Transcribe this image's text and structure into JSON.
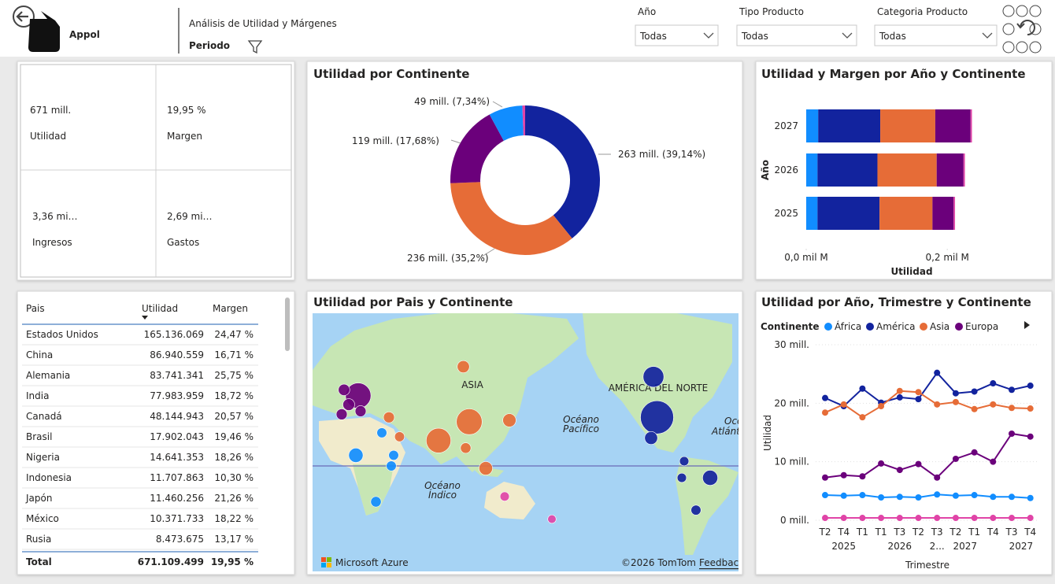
{
  "header": {
    "logo": "Appol",
    "title": "Análisis de Utilidad y Márgenes",
    "period_label": "Periodo"
  },
  "filters": [
    {
      "label": "Año",
      "value": "Todas"
    },
    {
      "label": "Tipo Producto",
      "value": "Todas"
    },
    {
      "label": "Categoria Producto",
      "value": "Todas"
    }
  ],
  "kpis": [
    {
      "value": "671 mill.",
      "label": "Utilidad"
    },
    {
      "value": "19,95 %",
      "label": "Margen"
    },
    {
      "value": "3,36 mi…",
      "label": "Ingresos"
    },
    {
      "value": "2,69 mi…",
      "label": "Gastos"
    }
  ],
  "table": {
    "columns": [
      "Pais",
      "Utilidad",
      "Margen"
    ],
    "rows": [
      [
        "Estados Unidos",
        "165.136.069",
        "24,47 %"
      ],
      [
        "China",
        "86.940.559",
        "16,71 %"
      ],
      [
        "Alemania",
        "83.741.341",
        "25,75 %"
      ],
      [
        "India",
        "77.983.959",
        "18,72 %"
      ],
      [
        "Canadá",
        "48.144.943",
        "20,57 %"
      ],
      [
        "Brasil",
        "17.902.043",
        "19,46 %"
      ],
      [
        "Nigeria",
        "14.641.353",
        "18,26 %"
      ],
      [
        "Indonesia",
        "11.707.863",
        "10,30 %"
      ],
      [
        "Japón",
        "11.460.256",
        "21,26 %"
      ],
      [
        "México",
        "10.371.733",
        "18,22 %"
      ],
      [
        "Rusia",
        "8.473.675",
        "13,17 %"
      ]
    ],
    "total": [
      "Total",
      "671.109.499",
      "19,95 %"
    ]
  },
  "map": {
    "title": "Utilidad por Pais y Continente",
    "labels": [
      "ASIA",
      "AMÉRICA DEL NORTE",
      "Océano",
      "Pacífico",
      "Océano",
      "Atlántico",
      "Océano",
      "Índico"
    ],
    "brand": "Microsoft Azure",
    "copyright": "©2026 TomTom",
    "feedback": "Feedback",
    "points": [
      {
        "lat": 38,
        "lon": -97,
        "value": 165,
        "color": "#12239e"
      },
      {
        "lat": 35,
        "lon": 104,
        "value": 87,
        "color": "#e66c37"
      },
      {
        "lat": 51,
        "lon": 10,
        "value": 84,
        "color": "#6b007b"
      },
      {
        "lat": 21,
        "lon": 78,
        "value": 78,
        "color": "#e66c37"
      },
      {
        "lat": 60,
        "lon": -100,
        "value": 48,
        "color": "#12239e"
      },
      {
        "lat": -10,
        "lon": -52,
        "value": 18,
        "color": "#12239e"
      },
      {
        "lat": 9,
        "lon": 8,
        "value": 15,
        "color": "#118dff"
      },
      {
        "lat": -2,
        "lon": 118,
        "value": 12,
        "color": "#e66c37"
      },
      {
        "lat": 36,
        "lon": 138,
        "value": 11,
        "color": "#e66c37"
      },
      {
        "lat": 23,
        "lon": -102,
        "value": 10,
        "color": "#12239e"
      },
      {
        "lat": 64,
        "lon": 99,
        "value": 8,
        "color": "#e66c37"
      },
      {
        "lat": 46,
        "lon": 2,
        "value": 7,
        "color": "#6b007b"
      },
      {
        "lat": 54,
        "lon": -2,
        "value": 6,
        "color": "#6b007b"
      },
      {
        "lat": 42,
        "lon": 12,
        "value": 5,
        "color": "#6b007b"
      },
      {
        "lat": 40,
        "lon": -4,
        "value": 5,
        "color": "#6b007b"
      },
      {
        "lat": 38,
        "lon": 36,
        "value": 5,
        "color": "#e66c37"
      },
      {
        "lat": 24,
        "lon": 45,
        "value": 3,
        "color": "#e66c37"
      },
      {
        "lat": 15,
        "lon": 101,
        "value": 4,
        "color": "#e66c37"
      },
      {
        "lat": 27,
        "lon": 30,
        "value": 3,
        "color": "#118dff"
      },
      {
        "lat": -29,
        "lon": 25,
        "value": 4,
        "color": "#118dff"
      },
      {
        "lat": 0,
        "lon": 38,
        "value": 3,
        "color": "#118dff"
      },
      {
        "lat": 9,
        "lon": 40,
        "value": 3,
        "color": "#118dff"
      },
      {
        "lat": -35,
        "lon": -64,
        "value": 3,
        "color": "#12239e"
      },
      {
        "lat": 4,
        "lon": -74,
        "value": 2,
        "color": "#12239e"
      },
      {
        "lat": -10,
        "lon": -76,
        "value": 2,
        "color": "#12239e"
      },
      {
        "lat": -25,
        "lon": 134,
        "value": 2,
        "color": "#e044a7"
      },
      {
        "lat": -41,
        "lon": 174,
        "value": 1,
        "color": "#e044a7"
      }
    ]
  },
  "chart_data": [
    {
      "type": "donut",
      "title": "Utilidad por Continente",
      "values": [
        263,
        236,
        119,
        49,
        4
      ],
      "value_labels": [
        "263 mill. (39,14%)",
        "236 mill. (35,2%)",
        "119 mill. (17,68%)",
        "49 mill. (7,34%)",
        null
      ],
      "colors": [
        "#12239e",
        "#e66c37",
        "#6b007b",
        "#118dff",
        "#e044a7"
      ]
    },
    {
      "type": "bar",
      "orientation": "horizontal",
      "stacked": true,
      "title": "Utilidad y Margen por Año y Continente",
      "categories": [
        "2027",
        "2026",
        "2025"
      ],
      "xlabel": "Utilidad",
      "ylabel": "Año",
      "xlim": [
        0,
        0.24
      ],
      "xticks": [
        {
          "value": 0,
          "label": "0,0 mil M"
        },
        {
          "value": 0.2,
          "label": "0,2 mil M"
        }
      ],
      "series": [
        {
          "color": "#118dff",
          "values": [
            0.017,
            0.016,
            0.016
          ]
        },
        {
          "color": "#12239e",
          "values": [
            0.088,
            0.085,
            0.088
          ]
        },
        {
          "color": "#e66c37",
          "values": [
            0.078,
            0.084,
            0.075
          ]
        },
        {
          "color": "#6b007b",
          "values": [
            0.05,
            0.038,
            0.03
          ]
        },
        {
          "color": "#e044a7",
          "values": [
            0.002,
            0.002,
            0.002
          ]
        }
      ]
    },
    {
      "type": "line",
      "title": "Utilidad por Año, Trimestre y Continente",
      "legend_title": "Continente",
      "categories": [
        "T2",
        "T4",
        "T1",
        "T1",
        "T3",
        "T2",
        "T3",
        "T2",
        "T1",
        "T4",
        "T3",
        "T4"
      ],
      "x_groups": [
        "2025",
        "2026",
        "2...",
        "2027",
        "2027"
      ],
      "xlabel": "Trimestre",
      "ylabel": "Utilidad",
      "ylim": [
        0,
        30
      ],
      "yticks": [
        {
          "value": 0,
          "label": "0 mill."
        },
        {
          "value": 10,
          "label": "10 mill."
        },
        {
          "value": 20,
          "label": "20 mill."
        },
        {
          "value": 30,
          "label": "30 mill."
        }
      ],
      "grid": true,
      "series": [
        {
          "name": "África",
          "color": "#118dff",
          "values": [
            4.3,
            4.2,
            4.3,
            3.9,
            4.0,
            3.9,
            4.4,
            4.2,
            4.3,
            4.0,
            4.0,
            3.8
          ]
        },
        {
          "name": "América",
          "color": "#12239e",
          "values": [
            20.9,
            19.5,
            22.5,
            20.1,
            21.0,
            20.7,
            25.2,
            21.7,
            22.0,
            23.4,
            22.3,
            23.0
          ]
        },
        {
          "name": "Asia",
          "color": "#e66c37",
          "values": [
            18.4,
            19.8,
            17.6,
            19.5,
            22.1,
            21.9,
            19.8,
            20.2,
            19.0,
            19.8,
            19.2,
            19.1
          ]
        },
        {
          "name": "Europa",
          "color": "#6b007b",
          "values": [
            7.3,
            7.7,
            7.5,
            9.7,
            8.6,
            9.6,
            7.3,
            10.5,
            11.6,
            10.0,
            14.8,
            14.3
          ]
        },
        {
          "name": null,
          "color": "#e044a7",
          "values": [
            0.4,
            0.4,
            0.4,
            0.4,
            0.4,
            0.4,
            0.4,
            0.4,
            0.4,
            0.4,
            0.4,
            0.4
          ]
        }
      ]
    }
  ]
}
